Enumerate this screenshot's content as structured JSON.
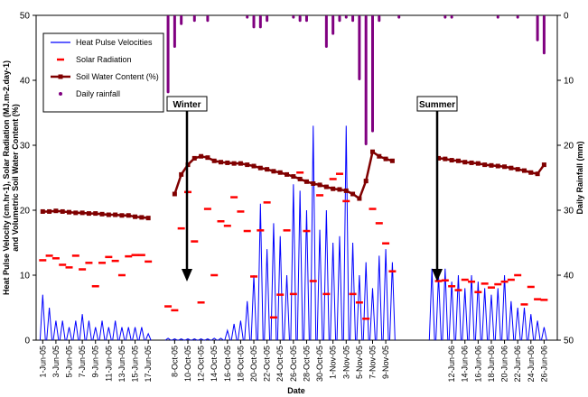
{
  "chart_data": {
    "type": "combo",
    "x_label": "Date",
    "y_label": [
      "Heat Pulse Velocity (cm.hr-1), Solar Radiation (MJ.m-2.day-1)",
      "and Volumetric Soil Water Content (%)"
    ],
    "y2_label": "Daily Rainfall (mm)",
    "annotations": [
      "Winter",
      "Summer"
    ],
    "xlim": [
      -1,
      78
    ],
    "xticks": [
      {
        "value": 0,
        "label": "1-Jun-05"
      },
      {
        "value": 2,
        "label": "3-Jun-05"
      },
      {
        "value": 4,
        "label": "5-Jun-05"
      },
      {
        "value": 6,
        "label": "7-Jun-05"
      },
      {
        "value": 8,
        "label": "9-Jun-05"
      },
      {
        "value": 10,
        "label": "11-Jun-05"
      },
      {
        "value": 12,
        "label": "13-Jun-05"
      },
      {
        "value": 14,
        "label": "15-Jun-05"
      },
      {
        "value": 16,
        "label": "17-Jun-05"
      },
      {
        "value": 20,
        "label": "8-Oct-05"
      },
      {
        "value": 22,
        "label": "10-Oct-05"
      },
      {
        "value": 24,
        "label": "12-Oct-05"
      },
      {
        "value": 26,
        "label": "14-Oct-05"
      },
      {
        "value": 28,
        "label": "16-Oct-05"
      },
      {
        "value": 30,
        "label": "18-Oct-05"
      },
      {
        "value": 32,
        "label": "20-Oct-05"
      },
      {
        "value": 34,
        "label": "22-Oct-05"
      },
      {
        "value": 36,
        "label": "24-Oct-05"
      },
      {
        "value": 38,
        "label": "26-Oct-05"
      },
      {
        "value": 40,
        "label": "28-Oct-05"
      },
      {
        "value": 42,
        "label": "30-Oct-05"
      },
      {
        "value": 44,
        "label": "1-Nov-05"
      },
      {
        "value": 46,
        "label": "3-Nov-05"
      },
      {
        "value": 48,
        "label": "5-Nov-05"
      },
      {
        "value": 50,
        "label": "7-Nov-05"
      },
      {
        "value": 52,
        "label": "9-Nov-05"
      },
      {
        "value": 62,
        "label": "12-Jun-06"
      },
      {
        "value": 64,
        "label": "14-Jun-06"
      },
      {
        "value": 66,
        "label": "16-Jun-06"
      },
      {
        "value": 68,
        "label": "18-Jun-06"
      },
      {
        "value": 70,
        "label": "20-Jun-06"
      },
      {
        "value": 72,
        "label": "22-Jun-06"
      },
      {
        "value": 74,
        "label": "24-Jun-06"
      },
      {
        "value": 76,
        "label": "26-Jun-06"
      }
    ],
    "ylim": [
      0,
      50
    ],
    "yticks": [
      0,
      10,
      20,
      30,
      40,
      50
    ],
    "y2lim": [
      50,
      0
    ],
    "y2ticks": [
      0,
      10,
      20,
      30,
      40,
      50
    ],
    "legend": "upper left",
    "series": [
      {
        "name": "Heat Pulse Velocities",
        "type": "spike",
        "color": "#0000ff",
        "x": [
          0,
          1,
          2,
          3,
          4,
          5,
          6,
          7,
          8,
          9,
          10,
          11,
          12,
          13,
          14,
          15,
          16,
          19,
          20,
          21,
          22,
          23,
          24,
          25,
          26,
          27,
          28,
          29,
          30,
          31,
          32,
          33,
          34,
          35,
          36,
          37,
          38,
          39,
          40,
          41,
          42,
          43,
          44,
          45,
          46,
          47,
          48,
          49,
          50,
          51,
          52,
          53,
          59,
          60,
          61,
          62,
          63,
          64,
          65,
          66,
          67,
          68,
          69,
          70,
          71,
          72,
          73,
          74,
          75,
          76
        ],
        "values": [
          7,
          5,
          3,
          3,
          2,
          3,
          4,
          3,
          2,
          3,
          2,
          3,
          2,
          2,
          2,
          2,
          1,
          0.3,
          0.2,
          0.2,
          0.2,
          0.2,
          0.2,
          0.2,
          0.3,
          0.3,
          1.5,
          2.5,
          3,
          6,
          10,
          21,
          14,
          18,
          16,
          10,
          24,
          23,
          20,
          33,
          17,
          20,
          15,
          16,
          33,
          15,
          10,
          12,
          8,
          13,
          14,
          12,
          11,
          10,
          11,
          9,
          10,
          8,
          10,
          9,
          8,
          7,
          8,
          10,
          6,
          5,
          5,
          4,
          3,
          2
        ]
      },
      {
        "name": "Solar Radiation",
        "type": "marker",
        "marker": "dash",
        "color": "#ff0000",
        "x": [
          0,
          1,
          2,
          3,
          4,
          5,
          6,
          7,
          8,
          9,
          10,
          11,
          12,
          13,
          14,
          15,
          16,
          19,
          20,
          21,
          22,
          23,
          24,
          25,
          26,
          27,
          28,
          29,
          30,
          31,
          32,
          33,
          34,
          35,
          36,
          37,
          38,
          39,
          40,
          41,
          42,
          43,
          44,
          45,
          46,
          47,
          48,
          49,
          50,
          51,
          52,
          53,
          60,
          61,
          62,
          63,
          64,
          65,
          66,
          67,
          68,
          69,
          70,
          71,
          72,
          73,
          74,
          75,
          76
        ],
        "values": [
          12.3,
          13.0,
          12.6,
          11.6,
          11.2,
          13.0,
          10.9,
          11.9,
          8.3,
          11.9,
          12.8,
          12.2,
          10.0,
          12.9,
          13.1,
          13.1,
          12.1,
          5.2,
          4.6,
          17.2,
          22.8,
          15.2,
          5.8,
          20.2,
          10.0,
          18.3,
          17.6,
          22.0,
          19.8,
          16.8,
          9.8,
          16.9,
          21.2,
          3.5,
          7.0,
          16.9,
          7.1,
          25.8,
          16.8,
          9.1,
          22.3,
          7.1,
          24.8,
          25.6,
          21.4,
          7.1,
          5.8,
          3.3,
          20.2,
          18.0,
          14.9,
          10.6,
          9.1,
          9.2,
          8.3,
          7.7,
          9.3,
          9.0,
          7.4,
          8.7,
          8.1,
          8.6,
          9.0,
          9.3,
          10.0,
          5.5,
          8.2,
          6.3,
          6.2
        ]
      },
      {
        "name": "Soil Water Content (%)",
        "type": "line",
        "marker": "square",
        "color": "#800000",
        "x": [
          0,
          1,
          2,
          3,
          4,
          5,
          6,
          7,
          8,
          9,
          10,
          11,
          12,
          13,
          14,
          15,
          16,
          18,
          20,
          21,
          22,
          23,
          24,
          25,
          26,
          27,
          28,
          29,
          30,
          31,
          32,
          33,
          34,
          35,
          36,
          37,
          38,
          39,
          40,
          41,
          42,
          43,
          44,
          45,
          46,
          47,
          48,
          49,
          50,
          51,
          52,
          53,
          56,
          60,
          61,
          62,
          63,
          64,
          65,
          66,
          67,
          68,
          69,
          70,
          71,
          72,
          73,
          74,
          75,
          76
        ],
        "values": [
          19.8,
          19.8,
          19.9,
          19.8,
          19.7,
          19.6,
          19.6,
          19.5,
          19.5,
          19.4,
          19.3,
          19.3,
          19.2,
          19.2,
          19.0,
          18.9,
          18.8,
          null,
          22.5,
          25.5,
          27.0,
          28.0,
          28.3,
          28.1,
          27.6,
          27.4,
          27.3,
          27.2,
          27.2,
          27.0,
          26.8,
          26.5,
          26.3,
          26.0,
          25.8,
          25.5,
          25.2,
          24.8,
          24.4,
          24.1,
          23.9,
          23.6,
          23.3,
          23.2,
          23.0,
          22.5,
          21.8,
          24.5,
          29.0,
          28.3,
          27.9,
          27.6,
          null,
          28.0,
          27.9,
          27.7,
          27.6,
          27.4,
          27.3,
          27.2,
          27.0,
          26.9,
          26.8,
          26.7,
          26.5,
          26.3,
          26.1,
          25.8,
          25.6,
          27.0
        ]
      },
      {
        "name": "Daily rainfall",
        "type": "bar",
        "marker": "circle",
        "color": "#800080",
        "axis": "y2",
        "x": [
          19,
          20,
          21,
          23,
          25,
          31,
          32,
          33,
          34,
          38,
          39,
          40,
          43,
          44,
          45,
          46,
          47,
          48,
          49,
          50,
          51,
          54,
          61,
          62,
          69,
          72,
          75,
          76
        ],
        "values": [
          12,
          5,
          1.5,
          1,
          1,
          0.5,
          2,
          2,
          1,
          0.5,
          1,
          1,
          5,
          3,
          1,
          0.5,
          1,
          10,
          20,
          18,
          1,
          0.5,
          0.5,
          0.5,
          0.5,
          0.5,
          4,
          6
        ]
      }
    ]
  }
}
